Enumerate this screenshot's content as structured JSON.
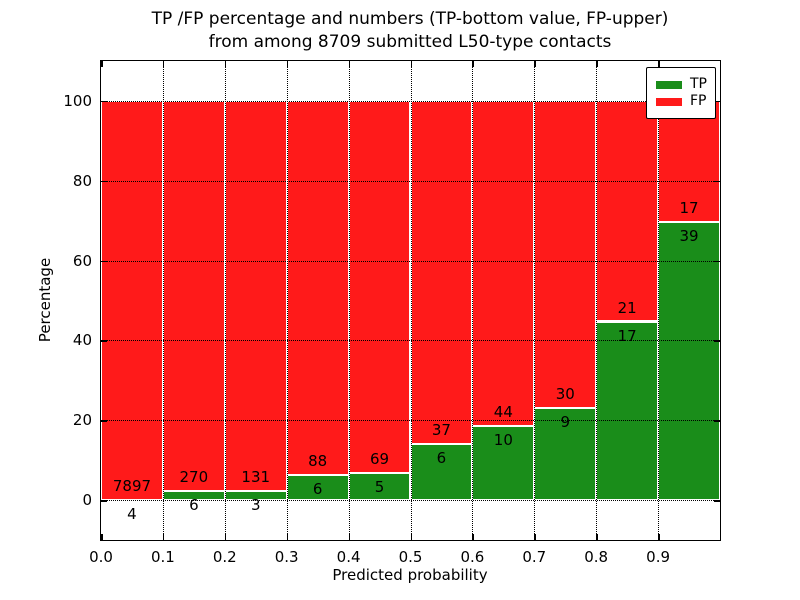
{
  "title": {
    "line1": "TP /FP percentage and numbers (TP-bottom value, FP-upper)",
    "line2": "from among 8709 submitted L50-type contacts"
  },
  "colors": {
    "tp_green": "#1a8d1a",
    "fp_red": "#ff1a1a",
    "bar_edge": "#ffffff",
    "grid": "#000000",
    "background": "#ffffff"
  },
  "chart_data": {
    "type": "bar",
    "stacked": true,
    "title": "TP /FP percentage and numbers (TP-bottom value, FP-upper) from among 8709 submitted L50-type contacts",
    "xlabel": "Predicted probability",
    "ylabel": "Percentage",
    "total_contacts": 8709,
    "xlim": [
      0.0,
      1.0
    ],
    "ylim": [
      -10,
      110
    ],
    "bin_width": 0.1,
    "bin_starts": [
      0.0,
      0.1,
      0.2,
      0.3,
      0.4,
      0.5,
      0.6,
      0.7,
      0.8,
      0.9
    ],
    "xtick_labels": [
      "0.0",
      "0.1",
      "0.2",
      "0.3",
      "0.4",
      "0.5",
      "0.6",
      "0.7",
      "0.8",
      "0.9"
    ],
    "ytick_values": [
      0,
      20,
      40,
      60,
      80,
      100
    ],
    "grid": "dotted black, both axes, drawn over bars",
    "bars_normalized_to_percent": 100,
    "series": [
      {
        "name": "TP",
        "color": "#1a8d1a",
        "counts": [
          4,
          6,
          3,
          6,
          5,
          6,
          10,
          9,
          17,
          39
        ]
      },
      {
        "name": "FP",
        "color": "#ff1a1a",
        "counts": [
          7897,
          270,
          131,
          88,
          69,
          37,
          44,
          30,
          21,
          17
        ]
      }
    ],
    "tp_percent_per_bin": [
      0.05,
      2.17,
      2.24,
      6.38,
      6.76,
      13.95,
      18.52,
      23.08,
      44.74,
      69.64
    ],
    "legend": {
      "position": "upper right",
      "entries": [
        {
          "label": "TP",
          "color": "#1a8d1a"
        },
        {
          "label": "FP",
          "color": "#ff1a1a"
        }
      ]
    }
  }
}
